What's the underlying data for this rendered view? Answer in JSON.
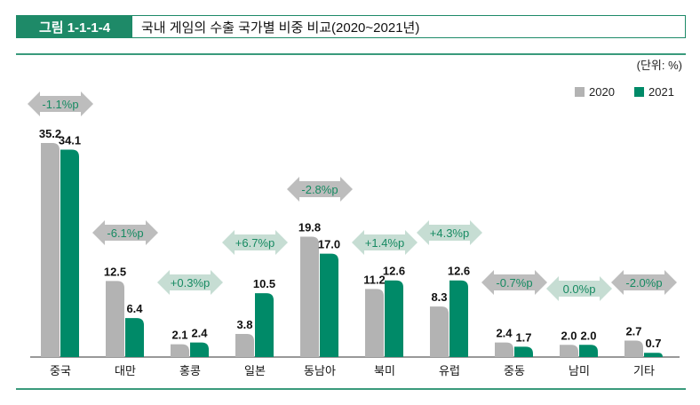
{
  "figure": {
    "label": "그림 1-1-1-4",
    "title": "국내 게임의 수출 국가별 비중 비교(2020~2021년)"
  },
  "unit": "(단위: %)",
  "colors": {
    "2020": "#b3b3b3",
    "2021": "#008a68",
    "accent": "#1e8a68",
    "arrow_down": "#bdbdbd",
    "arrow_up": "#c6ddd3",
    "arrow_text": "#178a62"
  },
  "chart_data": {
    "type": "bar",
    "categories": [
      "중국",
      "대만",
      "홍콩",
      "일본",
      "동남아",
      "북미",
      "유럽",
      "중동",
      "남미",
      "기타"
    ],
    "series": [
      {
        "name": "2020",
        "values": [
          35.2,
          12.5,
          2.1,
          3.8,
          19.8,
          11.2,
          8.3,
          2.4,
          2.0,
          2.7
        ],
        "labels": [
          "35.2",
          "12.5",
          "2.1",
          "3.8",
          "19.8",
          "11.2",
          "8.3",
          "2.4",
          "2.0",
          "2.7"
        ]
      },
      {
        "name": "2021",
        "values": [
          34.1,
          6.4,
          2.4,
          10.5,
          17.0,
          12.6,
          12.6,
          1.7,
          2.0,
          0.7
        ],
        "labels": [
          "34.1",
          "6.4",
          "2.4",
          "10.5",
          "17.0",
          "12.6",
          "12.6",
          "1.7",
          "2.0",
          "0.7"
        ]
      }
    ],
    "changes": [
      "-1.1%p",
      "-6.1%p",
      "+0.3%p",
      "+6.7%p",
      "-2.8%p",
      "+1.4%p",
      "+4.3%p",
      "-0.7%p",
      "0.0%p",
      "-2.0%p"
    ],
    "ylim": [
      0,
      36
    ],
    "legend": "top-right",
    "grid": false
  }
}
